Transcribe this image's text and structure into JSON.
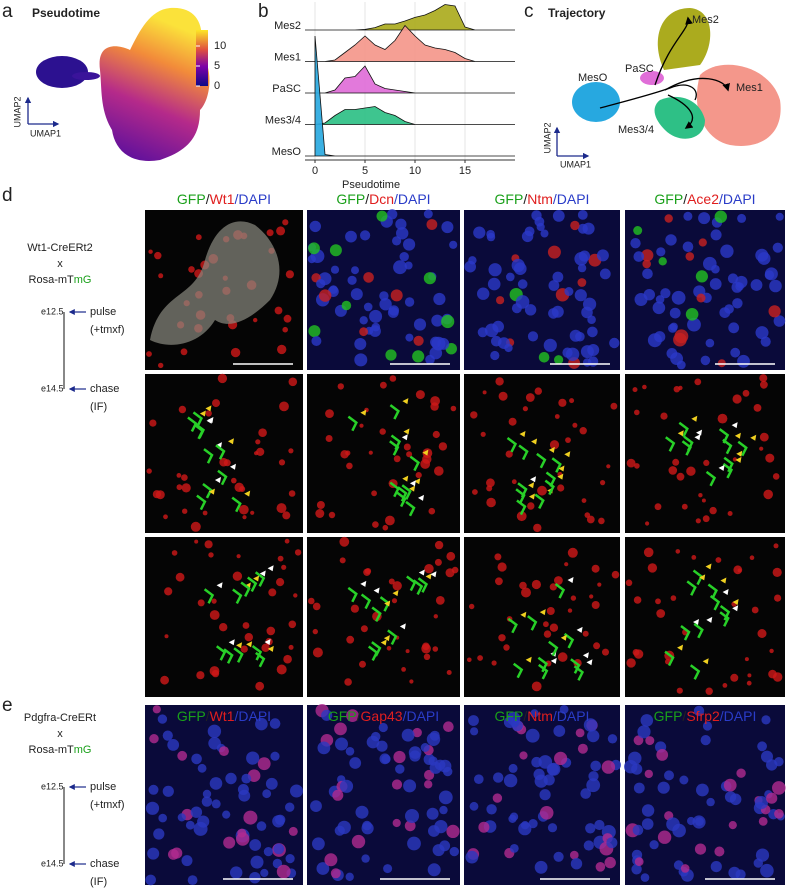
{
  "panel_labels": [
    "a",
    "b",
    "c",
    "d",
    "e"
  ],
  "panel_a": {
    "title": "Pseudotime",
    "x_label": "UMAP1",
    "y_label": "UMAP2",
    "colorbar": {
      "lim": [
        0,
        14
      ],
      "ticks": [
        0,
        5,
        10
      ]
    }
  },
  "chart_data": {
    "type": "ridgeline",
    "x_label": "Pseudotime",
    "x": [
      0,
      1,
      2,
      3,
      4,
      5,
      6,
      7,
      8,
      9,
      10,
      11,
      12,
      13,
      14,
      15,
      16
    ],
    "xlim": [
      -1,
      20
    ],
    "xticks": [
      0,
      5,
      10,
      15
    ],
    "series": [
      {
        "name": "Mes2",
        "color": "#abab1e",
        "values": [
          0,
          0,
          0,
          0,
          0,
          0.02,
          0.08,
          0.2,
          0.2,
          0.3,
          0.42,
          0.5,
          0.65,
          0.85,
          0.8,
          0.1,
          0
        ]
      },
      {
        "name": "Mes1",
        "color": "#f4978b",
        "values": [
          0,
          0,
          0.05,
          0.3,
          0.55,
          0.85,
          0.55,
          0.4,
          0.7,
          1.2,
          0.85,
          0.55,
          0.45,
          0.4,
          0.3,
          0.1,
          0
        ]
      },
      {
        "name": "PaSC",
        "color": "#e06ed8",
        "values": [
          0,
          0,
          0.1,
          0.5,
          0.55,
          0.9,
          0.3,
          0.15,
          0.1,
          0.05,
          0,
          0,
          0,
          0,
          0,
          0,
          0
        ]
      },
      {
        "name": "Mes3/4",
        "color": "#2ec086",
        "values": [
          0,
          0.05,
          0.3,
          0.5,
          0.5,
          0.55,
          0.6,
          0.4,
          0.3,
          0.1,
          0,
          0,
          0,
          0,
          0,
          0,
          0
        ]
      },
      {
        "name": "MesO",
        "color": "#2aa9e0",
        "values": [
          4,
          0.05,
          0,
          0,
          0,
          0,
          0,
          0,
          0,
          0,
          0,
          0,
          0,
          0,
          0,
          0,
          0
        ]
      }
    ]
  },
  "panel_c": {
    "title": "Trajectory",
    "x_label": "UMAP1",
    "y_label": "UMAP2",
    "clusters": [
      "Mes2",
      "PaSC",
      "MesO",
      "Mes1",
      "Mes3/4"
    ]
  },
  "panel_d": {
    "mouse_line": [
      "Wt1-CreERt2",
      "x",
      "Rosa-mT",
      "mG"
    ],
    "timeline": {
      "start": "e12.5",
      "start_event": [
        "pulse",
        "(+tmxf)"
      ],
      "end": "e14.5",
      "end_event": [
        "chase",
        "(IF)"
      ]
    },
    "columns": [
      [
        "GFP",
        "/",
        "Wt1",
        "/DAPI"
      ],
      [
        "GFP",
        "/",
        "Dcn",
        "/DAPI"
      ],
      [
        "GFP",
        "/",
        "Ntm",
        "/DAPI"
      ],
      [
        "GFP",
        "/",
        "Ace2",
        "/DAPI"
      ]
    ]
  },
  "panel_e": {
    "mouse_line": [
      "Pdgfra-CreERt",
      "x",
      "Rosa-mT",
      "mG"
    ],
    "timeline": {
      "start": "e12.5",
      "start_event": [
        "pulse",
        "(+tmxf)"
      ],
      "end": "e14.5",
      "end_event": [
        "chase",
        "(IF)"
      ]
    },
    "columns": [
      [
        "GFP",
        "/",
        "Wt1",
        "/DAPI"
      ],
      [
        "GFP",
        "/",
        "Gap43",
        "/DAPI"
      ],
      [
        "GFP",
        "/",
        "Ntm",
        "/DAPI"
      ],
      [
        "GFP",
        "/",
        "Sfrp2",
        "/DAPI"
      ]
    ]
  }
}
